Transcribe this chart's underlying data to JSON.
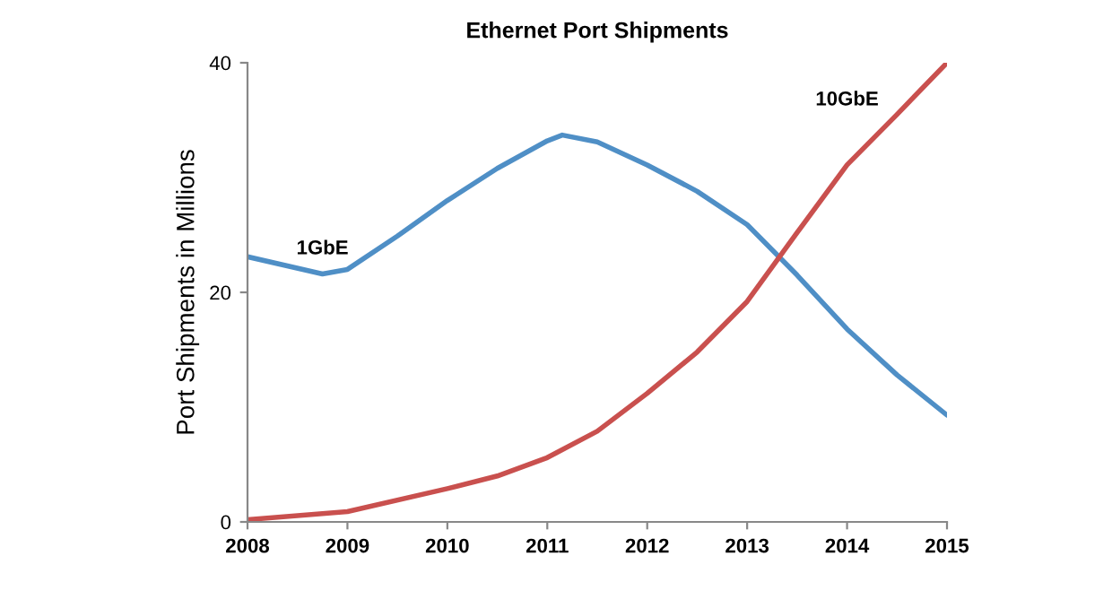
{
  "chart_data": {
    "type": "line",
    "title": "Ethernet Port Shipments",
    "ylabel": "Port Shipments in Millions",
    "xlim": [
      2008,
      2015
    ],
    "ylim": [
      0,
      40
    ],
    "xticks": [
      2008,
      2009,
      2010,
      2011,
      2012,
      2013,
      2014,
      2015
    ],
    "yticks": [
      0,
      20,
      40
    ],
    "grid": false,
    "legend": false,
    "marker": "none",
    "line_style": "solid",
    "series": [
      {
        "name": "1GbE",
        "color": "#4f8fc6",
        "x": [
          2008,
          2008.75,
          2009,
          2009.5,
          2010,
          2010.5,
          2011,
          2011.15,
          2011.5,
          2012,
          2012.5,
          2013,
          2013.5,
          2014,
          2014.5,
          2015
        ],
        "values": [
          23.1,
          21.6,
          22.0,
          24.9,
          28.0,
          30.8,
          33.2,
          33.7,
          33.1,
          31.1,
          28.8,
          25.9,
          21.5,
          16.8,
          12.8,
          9.3
        ]
      },
      {
        "name": "10GbE",
        "color": "#c9504e",
        "x": [
          2008,
          2009,
          2010,
          2010.5,
          2011,
          2011.5,
          2012,
          2012.5,
          2013,
          2013.5,
          2014,
          2014.5,
          2015
        ],
        "values": [
          0.2,
          0.9,
          2.9,
          4.0,
          5.6,
          7.9,
          11.2,
          14.8,
          19.2,
          25.2,
          31.1,
          35.5,
          40
        ]
      }
    ]
  }
}
